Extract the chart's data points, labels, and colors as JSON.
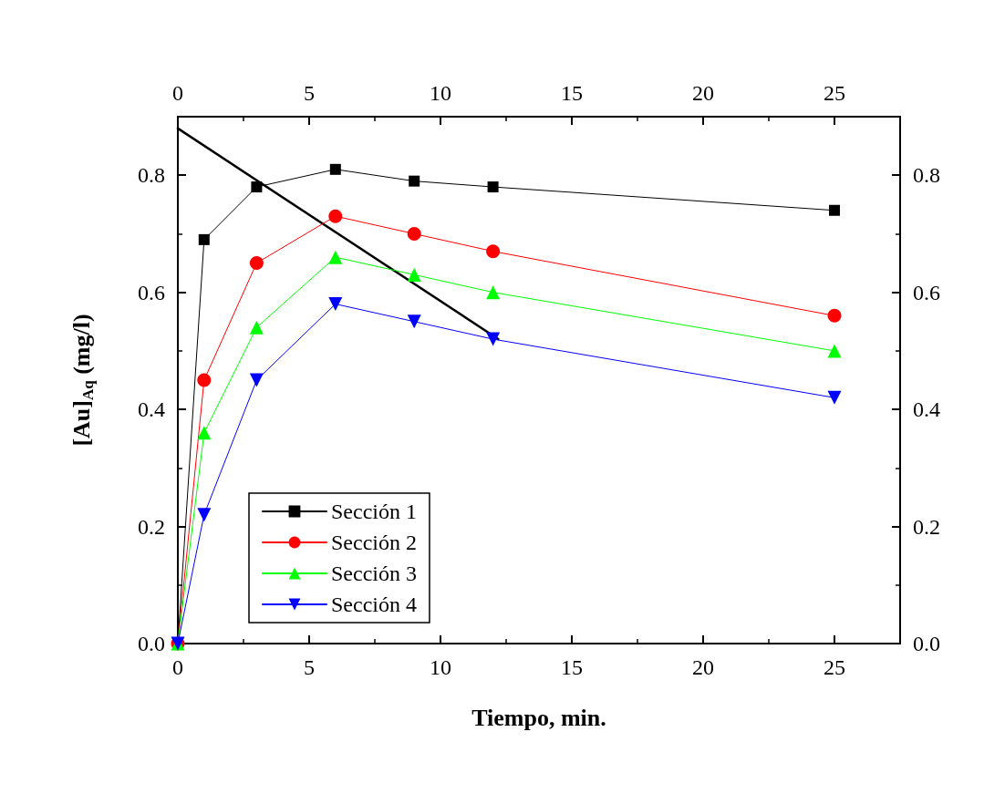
{
  "chart_data": {
    "type": "line",
    "xlabel": "Tiempo, min.",
    "ylabel": "[Au]$_{Aq}$ (mg/l)",
    "xlim": [
      0,
      27.5
    ],
    "xticks": [
      0,
      5,
      10,
      15,
      20,
      25
    ],
    "x2lim": [
      0,
      27.5
    ],
    "x2ticks": [
      0,
      5,
      10,
      15,
      20,
      25
    ],
    "ylim": [
      0,
      0.9
    ],
    "yticks": [
      {
        "value": 0,
        "label": "0.0"
      },
      {
        "value": 0.2,
        "label": "0.2"
      },
      {
        "value": 0.4,
        "label": "0.4"
      },
      {
        "value": 0.6,
        "label": "0.6"
      },
      {
        "value": 0.8,
        "label": "0.8"
      }
    ],
    "y2lim": [
      0,
      0.9
    ],
    "y2ticks": [
      {
        "value": 0,
        "label": "0.0"
      },
      {
        "value": 0.2,
        "label": "0.2"
      },
      {
        "value": 0.4,
        "label": "0.4"
      },
      {
        "value": 0.6,
        "label": "0.6"
      },
      {
        "value": 0.8,
        "label": "0.8"
      }
    ],
    "x": [
      0,
      1,
      3,
      6,
      9,
      12,
      25
    ],
    "legend": "bottom left",
    "grid": false,
    "line_style": "solid",
    "series": [
      {
        "name": "Sección 1",
        "color": "#000000",
        "marker": "square",
        "values": [
          0,
          0.69,
          0.78,
          0.81,
          0.79,
          0.78,
          0.74
        ]
      },
      {
        "name": "Sección 2",
        "color": "#ff0000",
        "marker": "circle",
        "values": [
          0,
          0.45,
          0.65,
          0.73,
          0.7,
          0.67,
          0.56
        ]
      },
      {
        "name": "Sección 3",
        "color": "#00ff00",
        "marker": "triangle",
        "values": [
          0,
          0.36,
          0.54,
          0.66,
          0.63,
          0.6,
          0.5
        ]
      },
      {
        "name": "Sección 4",
        "color": "#0000ff",
        "marker": "triangle-down",
        "values": [
          0,
          0.22,
          0.45,
          0.58,
          0.55,
          0.52,
          0.42
        ]
      },
      {
        "type": "line",
        "color": "#000000",
        "marker": "none",
        "x": [
          0,
          12.2
        ],
        "values": [
          0.88,
          0.52
        ]
      }
    ]
  }
}
